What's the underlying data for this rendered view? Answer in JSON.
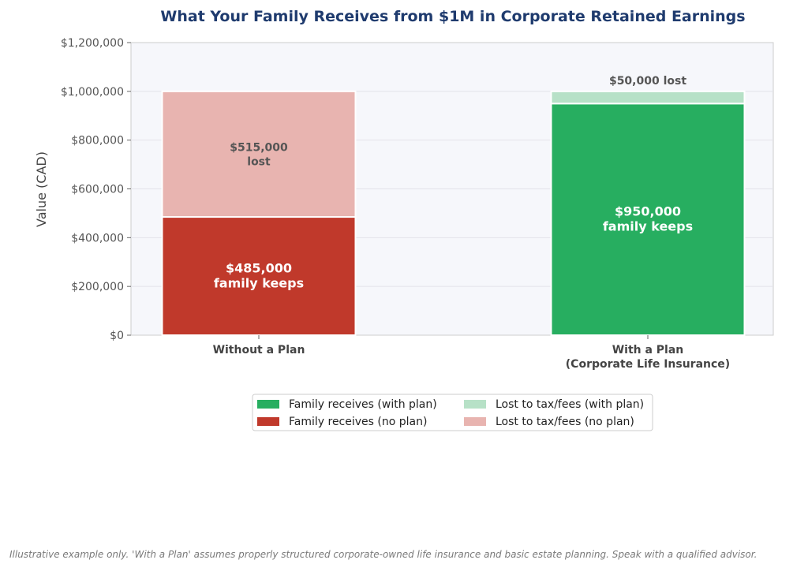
{
  "chart_data": {
    "type": "bar",
    "stacked": true,
    "title": "What Your Family Receives from $1M in Corporate Retained Earnings",
    "xlabel": "",
    "ylabel": "Value (CAD)",
    "ylim": [
      0,
      1200000
    ],
    "yticks": [
      "$0",
      "$200,000",
      "$400,000",
      "$600,000",
      "$800,000",
      "$1,000,000",
      "$1,200,000"
    ],
    "categories": [
      [
        "Without a Plan"
      ],
      [
        "With a Plan",
        "(Corporate Life Insurance)"
      ]
    ],
    "series": [
      {
        "name": "Family receives (with plan)",
        "color": "#27ae60",
        "values": [
          0,
          950000
        ]
      },
      {
        "name": "Family receives (no plan)",
        "color": "#c0392b",
        "values": [
          485000,
          0
        ]
      },
      {
        "name": "Lost to tax/fees (with plan)",
        "color": "#b7e1c7",
        "values": [
          0,
          50000
        ]
      },
      {
        "name": "Lost to tax/fees (no plan)",
        "color": "#e8b4b0",
        "values": [
          515000,
          0
        ]
      }
    ],
    "annotations": [
      {
        "series": 1,
        "category": 0,
        "lines": [
          "$485,000",
          "family keeps"
        ],
        "style": "light"
      },
      {
        "series": 3,
        "category": 0,
        "lines": [
          "$515,000",
          "lost"
        ],
        "style": "dark"
      },
      {
        "series": 0,
        "category": 1,
        "lines": [
          "$950,000",
          "family keeps"
        ],
        "style": "light"
      },
      {
        "series": 2,
        "category": 1,
        "lines": [
          "$50,000 lost"
        ],
        "style": "dark-above"
      }
    ],
    "grid": true,
    "legend_position": "bottom-center",
    "legend_columns": 2
  },
  "footnote": "Illustrative example only. 'With a Plan' assumes properly structured corporate-owned life insurance and basic estate planning. Speak with a qualified advisor."
}
